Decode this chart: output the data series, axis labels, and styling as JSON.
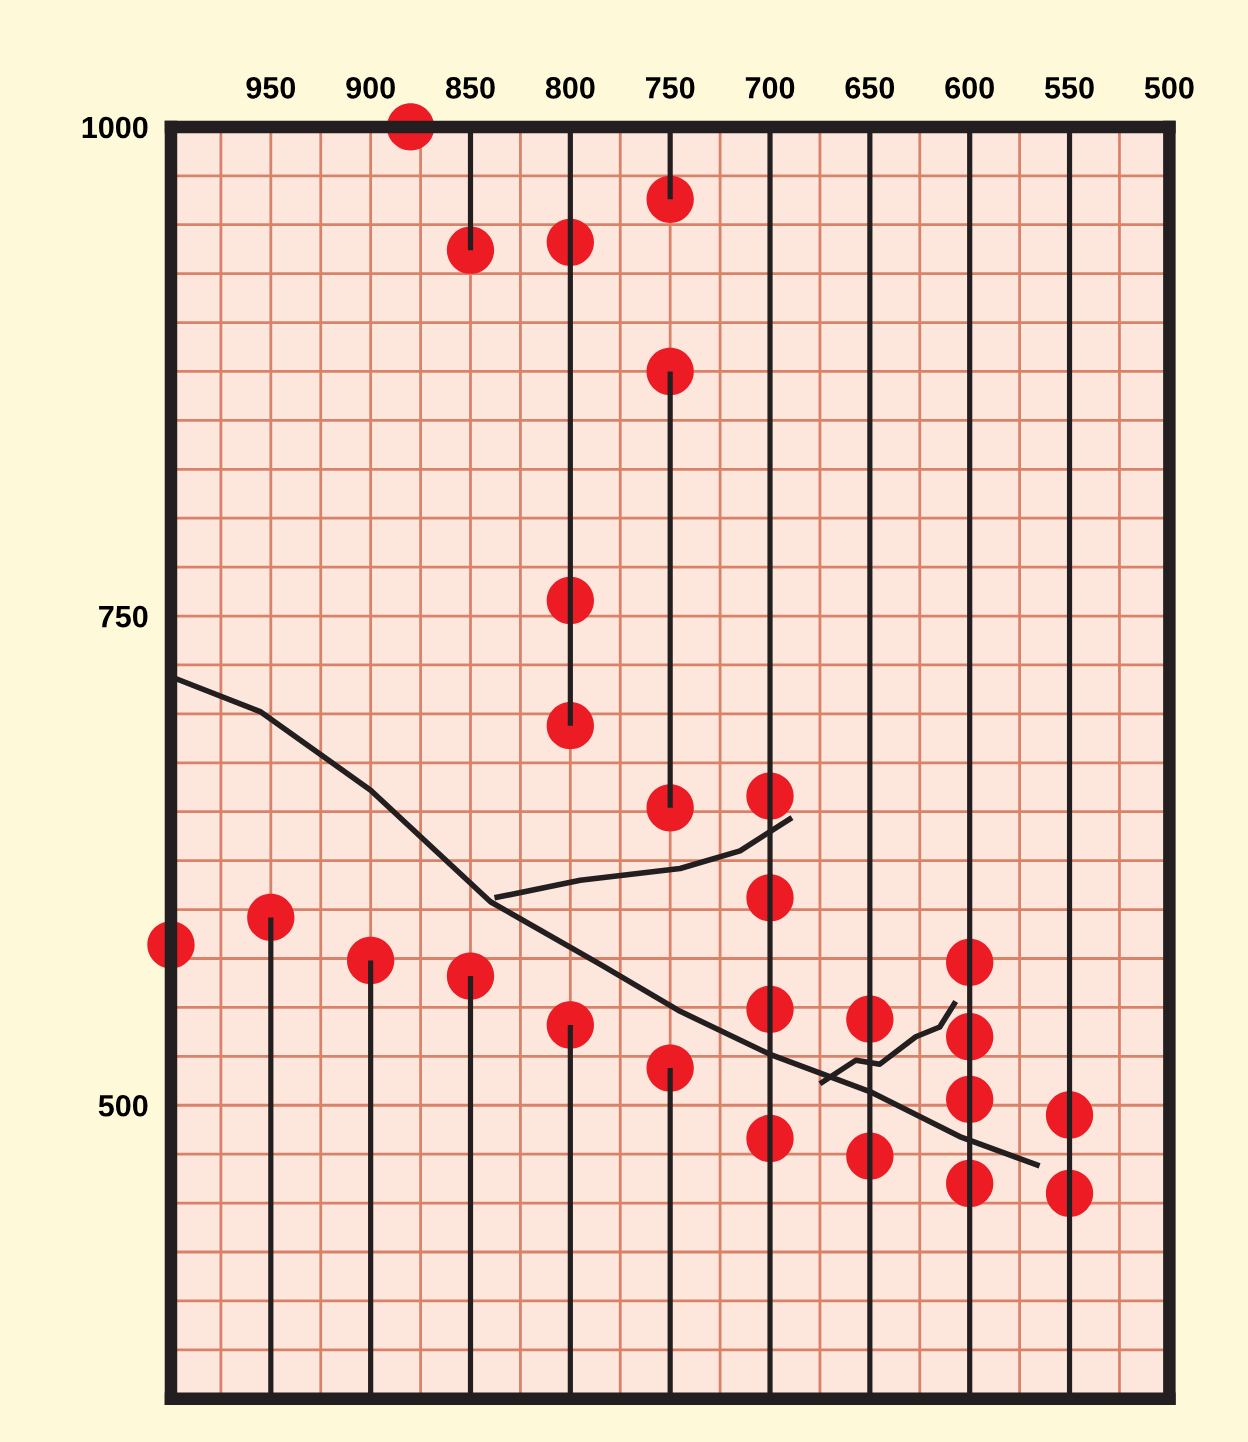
{
  "chart_data": {
    "type": "scatter",
    "xlim": [
      1000,
      500
    ],
    "ylim": [
      350,
      1000
    ],
    "xticks": [
      {
        "value": 975,
        "label": null
      },
      950,
      {
        "value": 925,
        "label": null
      },
      900,
      {
        "value": 875,
        "label": null
      },
      850,
      {
        "value": 825,
        "label": null
      },
      800,
      {
        "value": 775,
        "label": null
      },
      750,
      {
        "value": 725,
        "label": null
      },
      700,
      {
        "value": 675,
        "label": null
      },
      650,
      {
        "value": 625,
        "label": null
      },
      600,
      {
        "value": 575,
        "label": null
      },
      550,
      {
        "value": 525,
        "label": null
      },
      500
    ],
    "yticks": [
      1000,
      {
        "value": 975,
        "label": null
      },
      {
        "value": 950,
        "label": null
      },
      {
        "value": 925,
        "label": null
      },
      {
        "value": 900,
        "label": null
      },
      {
        "value": 875,
        "label": null
      },
      {
        "value": 850,
        "label": null
      },
      {
        "value": 825,
        "label": null
      },
      {
        "value": 800,
        "label": null
      },
      {
        "value": 775,
        "label": null
      },
      750,
      {
        "value": 725,
        "label": null
      },
      {
        "value": 700,
        "label": null
      },
      {
        "value": 675,
        "label": null
      },
      {
        "value": 650,
        "label": null
      },
      {
        "value": 625,
        "label": null
      },
      {
        "value": 600,
        "label": null
      },
      {
        "value": 575,
        "label": null
      },
      {
        "value": 550,
        "label": null
      },
      {
        "value": 525,
        "label": null
      },
      500,
      {
        "value": 475,
        "label": null
      },
      {
        "value": 450,
        "label": null
      },
      {
        "value": 425,
        "label": null
      },
      {
        "value": 400,
        "label": null
      },
      {
        "value": 375,
        "label": null
      }
    ],
    "grid": true,
    "series": [
      {
        "type": "line",
        "color": "#231f20",
        "x": [
          1000,
          955,
          900,
          840,
          785,
          745,
          700,
          650,
          605,
          565
        ],
        "values": [
          719,
          701,
          661,
          604,
          572,
          548,
          526,
          507,
          484,
          469
        ]
      },
      {
        "type": "line",
        "color": "#231f20",
        "x": [
          838,
          795,
          745,
          715,
          689
        ],
        "values": [
          606,
          615,
          621,
          630,
          647
        ]
      },
      {
        "type": "line",
        "color": "#231f20",
        "x": [
          675,
          657,
          645,
          627,
          615,
          607
        ],
        "values": [
          511,
          523,
          521,
          535,
          540,
          553
        ]
      },
      {
        "type": "bar",
        "color": "#231f20",
        "x": [
          950,
          900,
          850,
          800,
          750,
          700,
          650,
          600,
          550
        ],
        "base": [
          350,
          350,
          350,
          350,
          350,
          350,
          350,
          350,
          350
        ],
        "values": [
          246,
          224,
          216,
          191,
          169,
          650,
          650,
          650,
          650
        ]
      },
      {
        "type": "bar",
        "color": "#231f20",
        "x": [
          850,
          800,
          750
        ],
        "base": [
          937,
          694,
          652
        ],
        "values": [
          63,
          306,
          223
        ]
      },
      {
        "type": "bar",
        "color": "#231f20",
        "x": [
          750
        ],
        "base": [
          963
        ],
        "values": [
          37
        ]
      },
      {
        "marker": "circle",
        "color": "#ed1c24",
        "x": [
          1000,
          950,
          900,
          850,
          880,
          850,
          800,
          750,
          750,
          800,
          800,
          750,
          700,
          700,
          700,
          800,
          750,
          700,
          650,
          650,
          600,
          600,
          600,
          600,
          550,
          550
        ],
        "values": [
          582,
          596,
          574,
          566,
          1000,
          937,
          941,
          963,
          875,
          758,
          694,
          652,
          658,
          606,
          549,
          541,
          519,
          483,
          544,
          474,
          573,
          535,
          503,
          460,
          495,
          455
        ]
      }
    ]
  }
}
